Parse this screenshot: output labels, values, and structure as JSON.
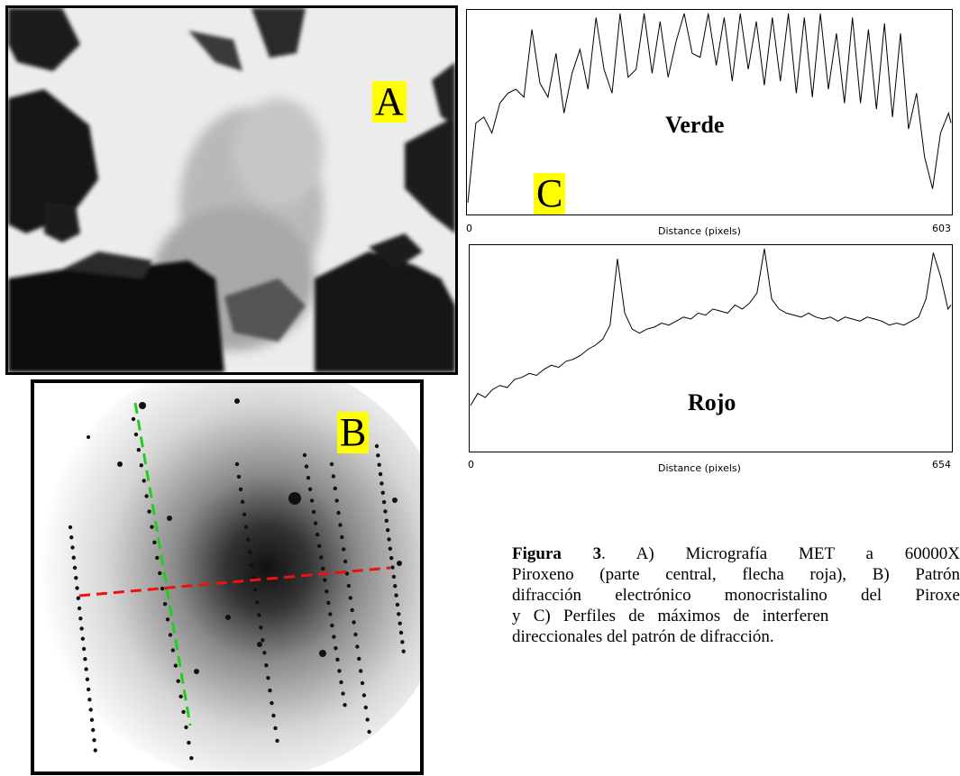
{
  "figure": {
    "panel_a_label": "A",
    "panel_b_label": "B",
    "panel_c_label": "C",
    "caption": {
      "bold_prefix": "Figura 3",
      "lines": [
        ". A) Micrografía MET a 60000X",
        "Piroxeno (parte central, flecha roja), B) Patrón",
        "difracción electrónico monocristalino del Piroxe",
        "y   C)   Perfiles   de   máximos   de   interferen",
        "direccionales del patrón de difracción."
      ]
    }
  },
  "chart_data": [
    {
      "type": "line",
      "title": "Verde",
      "xlabel": "Distance (pixels)",
      "ylabel": "",
      "xlim": [
        0,
        603
      ],
      "x_tick_labels": [
        "0",
        "603"
      ],
      "color": "#000000",
      "x": [
        0,
        10,
        20,
        30,
        40,
        50,
        60,
        70,
        80,
        90,
        100,
        110,
        120,
        130,
        140,
        150,
        160,
        170,
        180,
        190,
        200,
        210,
        220,
        230,
        240,
        250,
        260,
        270,
        280,
        290,
        300,
        310,
        320,
        330,
        340,
        350,
        360,
        370,
        380,
        390,
        400,
        410,
        420,
        430,
        440,
        450,
        460,
        470,
        480,
        490,
        500,
        510,
        520,
        530,
        540,
        550,
        560,
        570,
        580,
        590,
        600,
        603
      ],
      "y": [
        0.05,
        0.45,
        0.48,
        0.4,
        0.55,
        0.6,
        0.62,
        0.58,
        0.92,
        0.65,
        0.58,
        0.8,
        0.5,
        0.7,
        0.82,
        0.62,
        0.98,
        0.72,
        0.6,
        1.0,
        0.68,
        0.72,
        1.0,
        0.7,
        0.96,
        0.68,
        0.86,
        1.0,
        0.8,
        0.78,
        1.0,
        0.74,
        0.98,
        0.66,
        1.0,
        0.72,
        0.96,
        0.64,
        0.98,
        0.66,
        1.0,
        0.6,
        0.98,
        0.58,
        1.0,
        0.62,
        0.9,
        0.55,
        0.98,
        0.55,
        0.92,
        0.52,
        0.95,
        0.48,
        0.9,
        0.42,
        0.6,
        0.28,
        0.12,
        0.4,
        0.5,
        0.45
      ]
    },
    {
      "type": "line",
      "title": "Rojo",
      "xlabel": "Distance (pixels)",
      "ylabel": "",
      "xlim": [
        0,
        654
      ],
      "x_tick_labels": [
        "0",
        "654"
      ],
      "color": "#000000",
      "x": [
        0,
        10,
        20,
        30,
        40,
        50,
        60,
        70,
        80,
        90,
        100,
        110,
        120,
        130,
        140,
        150,
        160,
        170,
        180,
        190,
        200,
        210,
        220,
        230,
        240,
        250,
        260,
        270,
        280,
        290,
        300,
        310,
        320,
        330,
        340,
        350,
        360,
        370,
        380,
        390,
        400,
        410,
        420,
        430,
        440,
        450,
        460,
        470,
        480,
        490,
        500,
        510,
        520,
        530,
        540,
        550,
        560,
        570,
        580,
        590,
        600,
        610,
        620,
        630,
        640,
        650,
        654
      ],
      "y": [
        0.22,
        0.28,
        0.26,
        0.3,
        0.32,
        0.31,
        0.35,
        0.36,
        0.38,
        0.37,
        0.4,
        0.42,
        0.41,
        0.44,
        0.45,
        0.47,
        0.5,
        0.52,
        0.55,
        0.62,
        0.95,
        0.68,
        0.6,
        0.58,
        0.6,
        0.61,
        0.63,
        0.62,
        0.64,
        0.66,
        0.65,
        0.68,
        0.67,
        0.7,
        0.69,
        0.68,
        0.72,
        0.7,
        0.73,
        0.78,
        1.0,
        0.75,
        0.7,
        0.68,
        0.67,
        0.66,
        0.68,
        0.66,
        0.65,
        0.66,
        0.64,
        0.66,
        0.65,
        0.64,
        0.66,
        0.65,
        0.64,
        0.62,
        0.63,
        0.62,
        0.64,
        0.66,
        0.75,
        0.98,
        0.86,
        0.7,
        0.72
      ]
    }
  ]
}
